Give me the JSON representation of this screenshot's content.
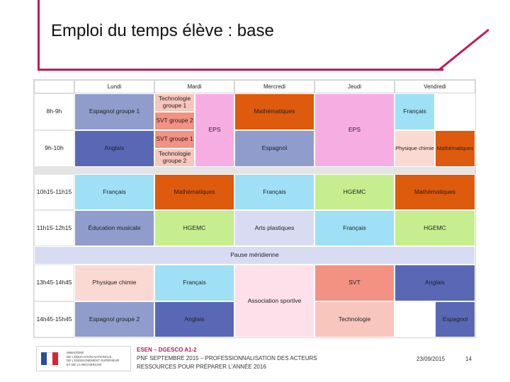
{
  "title": "Emploi du temps élève : base",
  "days": [
    "Lundi",
    "Mardi",
    "Mercredi",
    "Jeudi",
    "Vendredi"
  ],
  "times": [
    "8h-9h",
    "9h-10h",
    "10h15-11h15",
    "11h15-12h15",
    "13h45-14h45",
    "14h45-15h45"
  ],
  "lunch_label": "Pause méridienne",
  "lessons": {
    "mon_1": "Espagnol groupe 1",
    "mon_2": "Anglais",
    "mon_3": "Français",
    "mon_4": "Éducation musicale",
    "mon_5": "Physique chimie",
    "mon_6": "Espagnol groupe 2",
    "tue_1a": "Technologie groupe 1",
    "tue_1b": "SVT groupe 2",
    "tue_2a": "SVT groupe 1",
    "tue_2b": "Technologie groupe 2",
    "tue_eps": "EPS",
    "tue_3": "Mathématiques",
    "tue_4": "HGEMC",
    "tue_5": "Français",
    "tue_6": "Anglais",
    "wed_1": "Mathématiques",
    "wed_2": "Espagnol",
    "wed_3": "Français",
    "wed_4": "Arts plastiques",
    "wed_pm": "Association sportive",
    "thu_eps": "EPS",
    "thu_3": "HGEMC",
    "thu_4": "Français",
    "thu_5": "SVT",
    "thu_6": "Technologie",
    "fri_1": "Français",
    "fri_2a": "Physique chimie",
    "fri_2b": "Mathématiques",
    "fri_3": "Mathématiques",
    "fri_4": "HGEMC",
    "fri_5": "Anglais",
    "fri_6": "Espagnol"
  },
  "colors": {
    "accent": "#c2185b",
    "blue_light": "#8f9ccc",
    "blue_dark": "#5868b4",
    "pink": "#f6aee2",
    "orange": "#de5a0c",
    "cyan": "#9fe0f6",
    "green": "#c6ee8e",
    "lavender": "#d8dcf3",
    "salmon": "#f39182",
    "peach": "#f8c6bd",
    "light_pink": "#fde0ea",
    "pale_pink": "#fbd9d3"
  },
  "footer": {
    "logo_lines": [
      "MINISTÈRE",
      "DE L'ÉDUCATION NATIONALE,",
      "DE L'ENSEIGNEMENT SUPÉRIEUR",
      "ET DE LA RECHERCHE"
    ],
    "org": "ESEN – DGESCO A1-2",
    "line2": "PNF SEPTEMBRE 2015 – PROFESSIONNALISATION DES ACTEURS",
    "line3": "RESSOURCES POUR PRÉPARER L'ANNÉE 2016",
    "date": "23/09/2015",
    "page": "14"
  }
}
